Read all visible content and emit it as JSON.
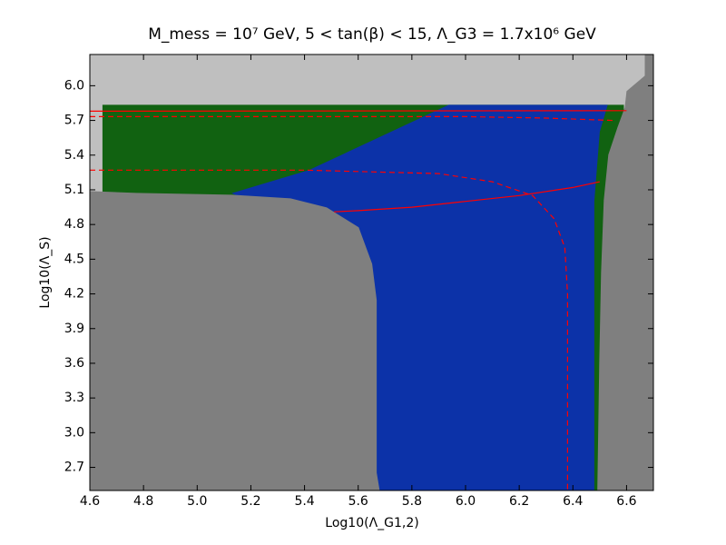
{
  "chart_data": {
    "type": "region",
    "title": "M_mess = 10⁷  GeV, 5 < tan(β) < 15, Λ_G3 = 1.7x10⁶  GeV",
    "x_label": "Log10(Λ_G1,2)",
    "y_label": "Log10(Λ_S)",
    "xlim": [
      4.6,
      6.7
    ],
    "ylim": [
      2.5,
      6.27
    ],
    "xticks": [
      4.6,
      4.8,
      {
        "value": 5.0,
        "label": "5.0"
      },
      5.2,
      5.4,
      5.6,
      5.8,
      {
        "value": 6.0,
        "label": "6.0"
      },
      6.2,
      6.4,
      6.6
    ],
    "yticks": [
      2.7,
      {
        "value": 3.0,
        "label": "3.0"
      },
      3.3,
      3.6,
      3.9,
      4.2,
      4.5,
      4.8,
      5.1,
      5.4,
      5.7,
      {
        "value": 6.0,
        "label": "6.0"
      }
    ],
    "background": "#bfbfbf",
    "regions": [
      {
        "color": "#116211",
        "x": [
          4.647,
          6.59,
          6.59,
          4.647
        ],
        "y": [
          5.835,
          5.835,
          2.5,
          2.5
        ]
      },
      {
        "color": "#0c32a8",
        "x": [
          5.937,
          6.53,
          6.5,
          6.48,
          6.48,
          5.3,
          5.3,
          5.128,
          5.416
        ],
        "y": [
          5.835,
          5.835,
          5.6,
          5.0,
          2.5,
          2.5,
          4.9,
          5.07,
          5.27
        ]
      },
      {
        "color": "#7f7f7f",
        "x": [
          4.6,
          4.773,
          5.128,
          5.348,
          5.483,
          5.602,
          5.652,
          5.669,
          5.669,
          5.68,
          4.6
        ],
        "y": [
          5.089,
          5.073,
          5.057,
          5.026,
          4.947,
          4.775,
          4.46,
          4.146,
          2.654,
          2.5,
          2.5
        ]
      },
      {
        "color": "#7f7f7f",
        "x": [
          6.668,
          6.7,
          6.7,
          6.491,
          6.498,
          6.505,
          6.515,
          6.532,
          6.566,
          6.593,
          6.6,
          6.668
        ],
        "y": [
          6.27,
          6.27,
          2.5,
          2.5,
          3.596,
          4.382,
          5.01,
          5.403,
          5.639,
          5.811,
          5.953,
          6.086
        ]
      }
    ],
    "lines": [
      {
        "color": "#ff0000",
        "style": "solid",
        "x": [
          4.6,
          6.6
        ],
        "y": [
          5.78,
          5.785
        ]
      },
      {
        "color": "#ff0000",
        "style": "dashed",
        "x": [
          4.6,
          6.0,
          6.3,
          6.55
        ],
        "y": [
          5.733,
          5.733,
          5.72,
          5.7
        ]
      },
      {
        "color": "#ff0000",
        "style": "dashed",
        "x": [
          4.6,
          5.4,
          5.9,
          6.1,
          6.25,
          6.33,
          6.37,
          6.38,
          6.38
        ],
        "y": [
          5.27,
          5.27,
          5.24,
          5.17,
          5.05,
          4.85,
          4.6,
          4.2,
          2.5
        ]
      },
      {
        "color": "#ff0000",
        "style": "solid",
        "x": [
          5.51,
          5.6,
          5.8,
          6.0,
          6.2,
          6.4,
          6.5
        ],
        "y": [
          4.91,
          4.92,
          4.95,
          5.0,
          5.05,
          5.12,
          5.17
        ]
      }
    ]
  }
}
